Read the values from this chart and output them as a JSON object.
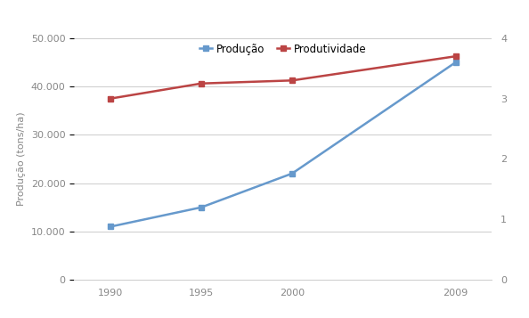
{
  "x": [
    1990,
    1995,
    2000,
    2009
  ],
  "producao": [
    11000,
    15000,
    22000,
    45000
  ],
  "produtividade": [
    3.0,
    3.25,
    3.3,
    3.7
  ],
  "producao_color": "#6699CC",
  "produtividade_color": "#BB4444",
  "ylabel_left": "Produção (tons/ha)",
  "legend_producao": "Produção",
  "legend_produtividade": "Produtividade",
  "ylim_left": [
    0,
    50000
  ],
  "ylim_right": [
    0,
    4
  ],
  "yticks_left": [
    0,
    10000,
    20000,
    30000,
    40000,
    50000
  ],
  "yticks_right": [
    0,
    1,
    2,
    3,
    4
  ],
  "xticks": [
    1990,
    1995,
    2000,
    2009
  ],
  "xlim": [
    1988,
    2011
  ],
  "background_color": "#ffffff",
  "grid_color": "#cccccc",
  "line_width": 1.8,
  "marker": "s",
  "marker_size": 4,
  "tick_label_color": "#888888",
  "ylabel_color": "#888888",
  "ylabel_fontsize": 8,
  "tick_fontsize": 8
}
